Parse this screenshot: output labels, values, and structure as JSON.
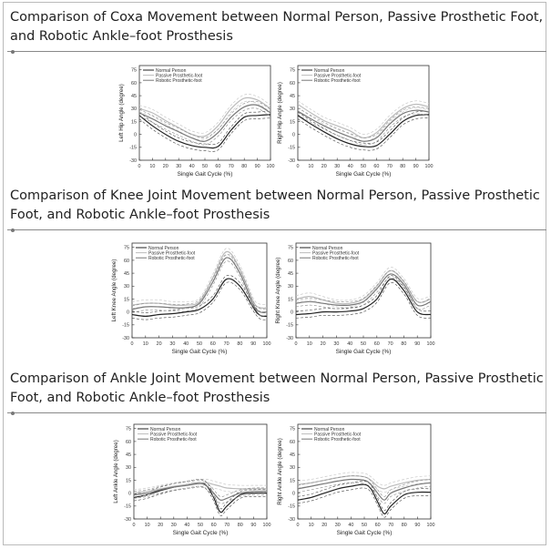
{
  "sections": [
    {
      "title": "Comparison of Coxa Movement between Normal Person, Passive Prosthetic Foot, and Robotic Ankle–foot Prosthesis"
    },
    {
      "title": "Comparison of Knee Joint Movement between Normal Person, Passive Prosthetic Foot, and Robotic Ankle–foot Prosthesis"
    },
    {
      "title": "Comparison of Ankle Joint Movement between Normal Person, Passive Prosthetic Foot, and Robotic Ankle–foot Prosthesis"
    }
  ],
  "chart_data": [
    {
      "id": "left-hip",
      "type": "line",
      "xlabel": "Single Gait Cycle (%)",
      "ylabel": "Left Hip Angle (degree)",
      "xlim": [
        0,
        100
      ],
      "ylim": [
        -30,
        80
      ],
      "xticks": [
        0,
        10,
        20,
        30,
        40,
        50,
        60,
        70,
        80,
        90,
        100
      ],
      "yticks": [
        -30,
        -15,
        0,
        15,
        30,
        45,
        60,
        75
      ],
      "legend": [
        "Normal Person",
        "Passive Prosthetic-foot",
        "Robotic Prosthetic-foot"
      ],
      "legend_position": "top-left",
      "x": [
        0,
        10,
        20,
        30,
        40,
        50,
        60,
        70,
        80,
        90,
        100
      ],
      "series": [
        {
          "name": "Normal Person",
          "values": [
            22,
            10,
            0,
            -8,
            -13,
            -15,
            -14,
            5,
            20,
            22,
            23
          ]
        },
        {
          "name": "Passive Prosthetic-foot",
          "values": [
            30,
            25,
            16,
            8,
            0,
            -2,
            10,
            30,
            42,
            40,
            30
          ]
        },
        {
          "name": "Robotic Prosthetic-foot",
          "values": [
            25,
            18,
            10,
            3,
            -4,
            -8,
            2,
            20,
            32,
            34,
            25
          ]
        }
      ]
    },
    {
      "id": "right-hip",
      "type": "line",
      "xlabel": "Single Gait Cycle (%)",
      "ylabel": "Right Hip Angle (degree)",
      "xlim": [
        0,
        100
      ],
      "ylim": [
        -30,
        80
      ],
      "xticks": [
        0,
        10,
        20,
        30,
        40,
        50,
        60,
        70,
        80,
        90,
        100
      ],
      "yticks": [
        -30,
        -15,
        0,
        15,
        30,
        45,
        60,
        75
      ],
      "legend": [
        "Normal Person",
        "Passive Prosthetic-foot",
        "Robotic Prosthetic-foot"
      ],
      "legend_position": "top-left",
      "x": [
        0,
        10,
        20,
        30,
        40,
        50,
        60,
        70,
        80,
        90,
        100
      ],
      "series": [
        {
          "name": "Normal Person",
          "values": [
            22,
            12,
            3,
            -5,
            -11,
            -14,
            -13,
            0,
            15,
            22,
            23
          ]
        },
        {
          "name": "Passive Prosthetic-foot",
          "values": [
            35,
            25,
            16,
            10,
            4,
            -4,
            2,
            18,
            30,
            35,
            32
          ]
        },
        {
          "name": "Robotic Prosthetic-foot",
          "values": [
            27,
            18,
            10,
            3,
            -3,
            -8,
            -4,
            12,
            24,
            28,
            26
          ]
        }
      ]
    },
    {
      "id": "left-knee",
      "type": "line",
      "xlabel": "Single Gait Cycle (%)",
      "ylabel": "Left Knee Angle (degree)",
      "xlim": [
        0,
        100
      ],
      "ylim": [
        -30,
        80
      ],
      "xticks": [
        0,
        10,
        20,
        30,
        40,
        50,
        60,
        70,
        80,
        90,
        100
      ],
      "yticks": [
        -30,
        -15,
        0,
        15,
        30,
        45,
        60,
        75
      ],
      "legend": [
        "Normal Person",
        "Passive Prosthetic-foot",
        "Robotic Prosthetic-foot"
      ],
      "legend_position": "top-left",
      "x": [
        0,
        10,
        20,
        30,
        40,
        50,
        60,
        70,
        80,
        90,
        95,
        100
      ],
      "series": [
        {
          "name": "Normal Person",
          "values": [
            -3,
            -5,
            -3,
            -2,
            0,
            3,
            15,
            38,
            30,
            5,
            -4,
            -5
          ]
        },
        {
          "name": "Passive Prosthetic-foot",
          "values": [
            8,
            10,
            10,
            8,
            8,
            12,
            40,
            70,
            50,
            12,
            5,
            5
          ]
        },
        {
          "name": "Robotic Prosthetic-foot",
          "values": [
            3,
            6,
            6,
            5,
            5,
            10,
            35,
            63,
            45,
            8,
            0,
            0
          ]
        }
      ]
    },
    {
      "id": "right-knee",
      "type": "line",
      "xlabel": "Single Gait Cycle (%)",
      "ylabel": "Right Knee Angle (degree)",
      "xlim": [
        0,
        100
      ],
      "ylim": [
        -30,
        80
      ],
      "xticks": [
        0,
        10,
        20,
        30,
        40,
        50,
        60,
        70,
        80,
        90,
        100
      ],
      "yticks": [
        -30,
        -15,
        0,
        15,
        30,
        45,
        60,
        75
      ],
      "legend": [
        "Normal Person",
        "Passive Prosthetic-foot",
        "Robotic Prosthetic-foot"
      ],
      "legend_position": "top-left",
      "x": [
        0,
        10,
        20,
        30,
        40,
        50,
        60,
        70,
        80,
        90,
        100
      ],
      "series": [
        {
          "name": "Normal Person",
          "values": [
            -3,
            -2,
            0,
            0,
            1,
            4,
            15,
            38,
            25,
            0,
            -3
          ]
        },
        {
          "name": "Passive Prosthetic-foot",
          "values": [
            15,
            18,
            14,
            10,
            10,
            15,
            30,
            48,
            35,
            12,
            15
          ]
        },
        {
          "name": "Robotic Prosthetic-foot",
          "values": [
            10,
            12,
            10,
            8,
            8,
            12,
            27,
            44,
            32,
            8,
            12
          ]
        }
      ]
    },
    {
      "id": "left-ankle",
      "type": "line",
      "xlabel": "Single Gait Cycle (%)",
      "ylabel": "Left Ankle Angle (degree)",
      "xlim": [
        0,
        100
      ],
      "ylim": [
        -30,
        80
      ],
      "xticks": [
        0,
        10,
        20,
        30,
        40,
        50,
        60,
        70,
        80,
        90,
        100
      ],
      "yticks": [
        -30,
        -15,
        0,
        15,
        30,
        45,
        60,
        75
      ],
      "legend": [
        "Normal Person",
        "Passive Prosthetic-foot",
        "Robotic Prosthetic-foot"
      ],
      "legend_position": "top-left",
      "x": [
        0,
        10,
        20,
        30,
        40,
        50,
        55,
        60,
        65,
        70,
        80,
        90,
        100
      ],
      "series": [
        {
          "name": "Normal Person",
          "values": [
            -5,
            -2,
            3,
            7,
            10,
            12,
            8,
            -5,
            -22,
            -15,
            -2,
            0,
            0
          ]
        },
        {
          "name": "Passive Prosthetic-foot",
          "values": [
            0,
            2,
            5,
            8,
            10,
            12,
            12,
            10,
            8,
            6,
            5,
            5,
            5
          ]
        },
        {
          "name": "Robotic Prosthetic-foot",
          "values": [
            -2,
            0,
            4,
            7,
            9,
            11,
            8,
            0,
            -8,
            -6,
            0,
            2,
            2
          ]
        }
      ]
    },
    {
      "id": "right-ankle",
      "type": "line",
      "xlabel": "Single Gait Cycle (%)",
      "ylabel": "Right Ankle Angle (degree)",
      "xlim": [
        0,
        100
      ],
      "ylim": [
        -30,
        80
      ],
      "xticks": [
        0,
        10,
        20,
        30,
        40,
        50,
        60,
        70,
        80,
        90,
        100
      ],
      "yticks": [
        -30,
        -15,
        0,
        15,
        30,
        45,
        60,
        75
      ],
      "legend": [
        "Normal Person",
        "Passive Prosthetic-foot",
        "Robotic Prosthetic-foot"
      ],
      "legend_position": "top-left",
      "x": [
        0,
        10,
        20,
        30,
        40,
        50,
        55,
        60,
        65,
        70,
        80,
        90,
        100
      ],
      "series": [
        {
          "name": "Normal Person",
          "values": [
            -8,
            -5,
            0,
            5,
            8,
            10,
            5,
            -10,
            -24,
            -15,
            -2,
            1,
            1
          ]
        },
        {
          "name": "Passive Prosthetic-foot",
          "values": [
            10,
            12,
            15,
            18,
            20,
            19,
            15,
            8,
            5,
            8,
            12,
            15,
            16
          ]
        },
        {
          "name": "Robotic Prosthetic-foot",
          "values": [
            5,
            8,
            11,
            14,
            16,
            15,
            10,
            0,
            -8,
            0,
            6,
            10,
            12
          ]
        }
      ]
    }
  ]
}
